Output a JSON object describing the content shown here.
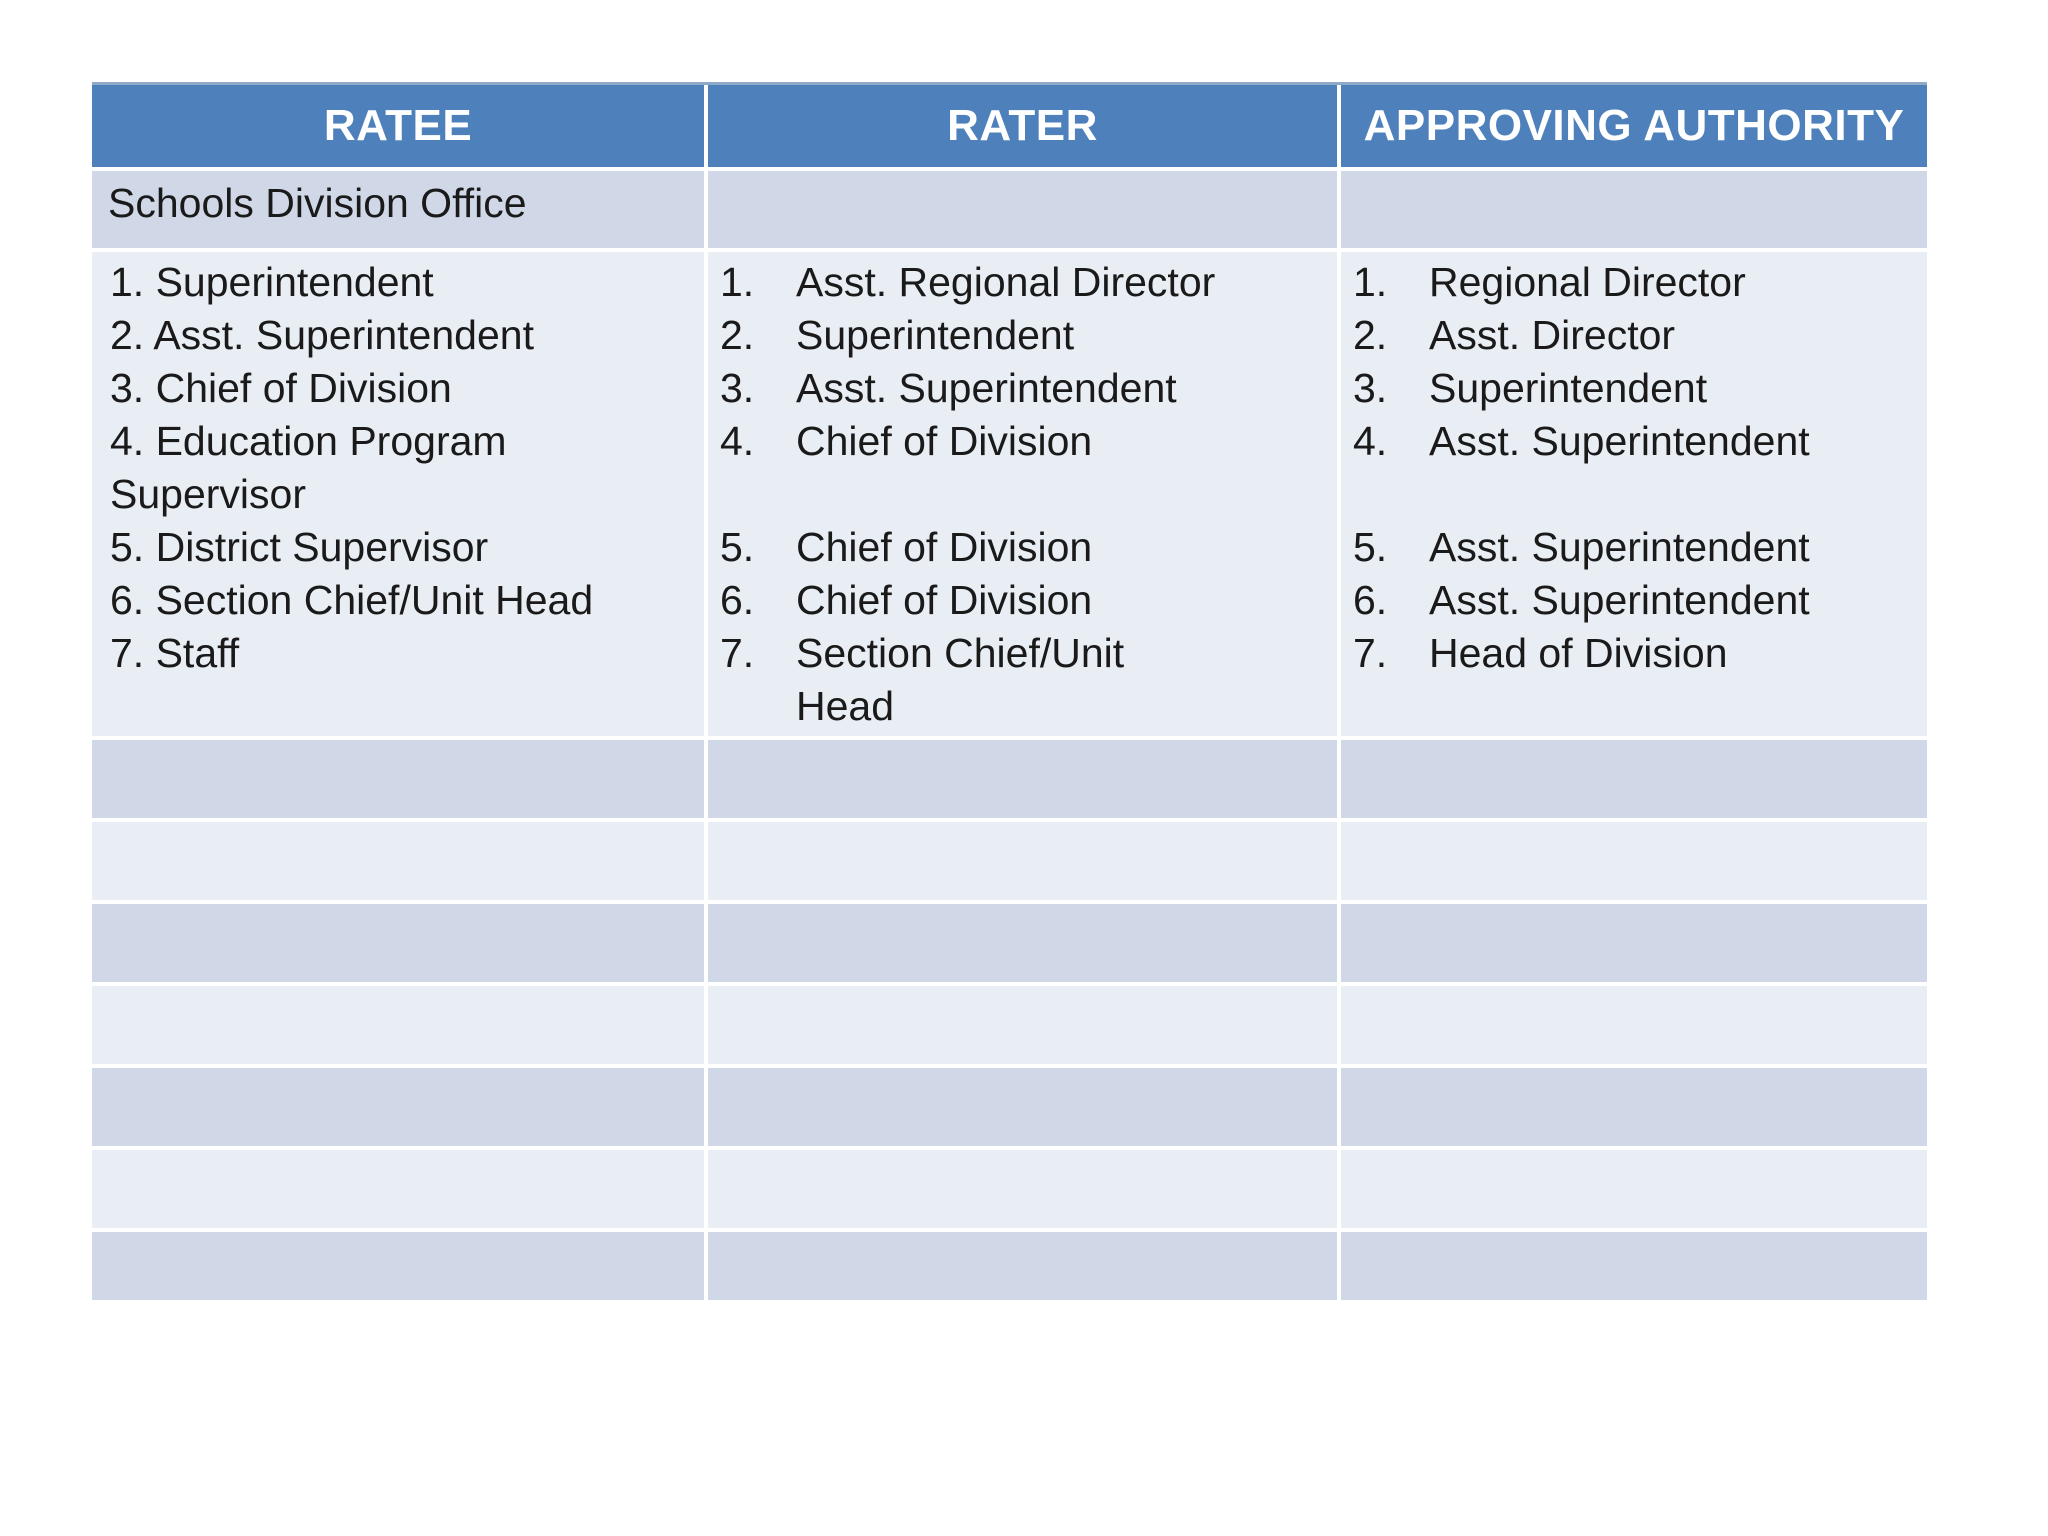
{
  "page": {
    "background": "#ffffff"
  },
  "table": {
    "colors": {
      "header_bg": "#4E80BC",
      "header_text": "#FFFFFF",
      "band_dark": "#D0D8E8",
      "band_light": "#E9EDF4",
      "top_border": "#8FA9C9",
      "body_text": "#1A1A1A",
      "page_bg": "#FFFFFF"
    },
    "headers": [
      "RATEE",
      "RATER",
      "APPROVING AUTHORITY"
    ],
    "section_row": {
      "label": "Schools Division Office"
    },
    "content_row": {
      "ratee_lines": [
        "1. Superintendent",
        "2. Asst. Superintendent",
        "3. Chief of Division",
        "4. Education Program",
        "Supervisor",
        "5. District Supervisor",
        "6. Section Chief/Unit Head",
        "7. Staff"
      ],
      "rater_items": [
        {
          "num": "1.",
          "lines": [
            "Asst. Regional Director"
          ]
        },
        {
          "num": "2.",
          "lines": [
            "Superintendent"
          ]
        },
        {
          "num": "3.",
          "lines": [
            "Asst. Superintendent"
          ]
        },
        {
          "num": "4.",
          "lines": [
            "Chief of Division"
          ]
        },
        {
          "num": "",
          "lines": [
            ""
          ]
        },
        {
          "num": "5.",
          "lines": [
            "Chief of Division"
          ]
        },
        {
          "num": "6.",
          "lines": [
            "Chief of Division"
          ]
        },
        {
          "num": "7.",
          "lines": [
            "Section Chief/Unit",
            "Head"
          ]
        }
      ],
      "approver_items": [
        {
          "num": "1.",
          "lines": [
            "Regional Director"
          ]
        },
        {
          "num": "2.",
          "lines": [
            "Asst. Director"
          ]
        },
        {
          "num": "3.",
          "lines": [
            "Superintendent"
          ]
        },
        {
          "num": "4.",
          "lines": [
            "Asst. Superintendent"
          ]
        },
        {
          "num": "",
          "lines": [
            ""
          ]
        },
        {
          "num": "5.",
          "lines": [
            "Asst. Superintendent"
          ]
        },
        {
          "num": "6.",
          "lines": [
            "Asst. Superintendent"
          ]
        },
        {
          "num": "7.",
          "lines": [
            "Head of Division"
          ]
        }
      ]
    },
    "empty_rows": 7
  }
}
